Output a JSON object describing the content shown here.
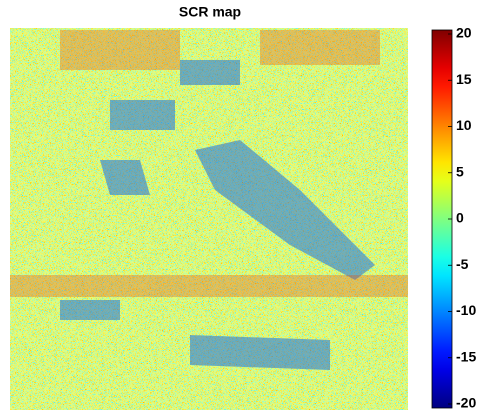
{
  "chart_data": {
    "type": "heatmap",
    "title": "SCR map",
    "colorbar": {
      "lim": [
        -20,
        20
      ],
      "ticks": [
        -20,
        -15,
        -10,
        -5,
        0,
        5,
        10,
        15,
        20
      ],
      "colormap": "jet"
    }
  }
}
